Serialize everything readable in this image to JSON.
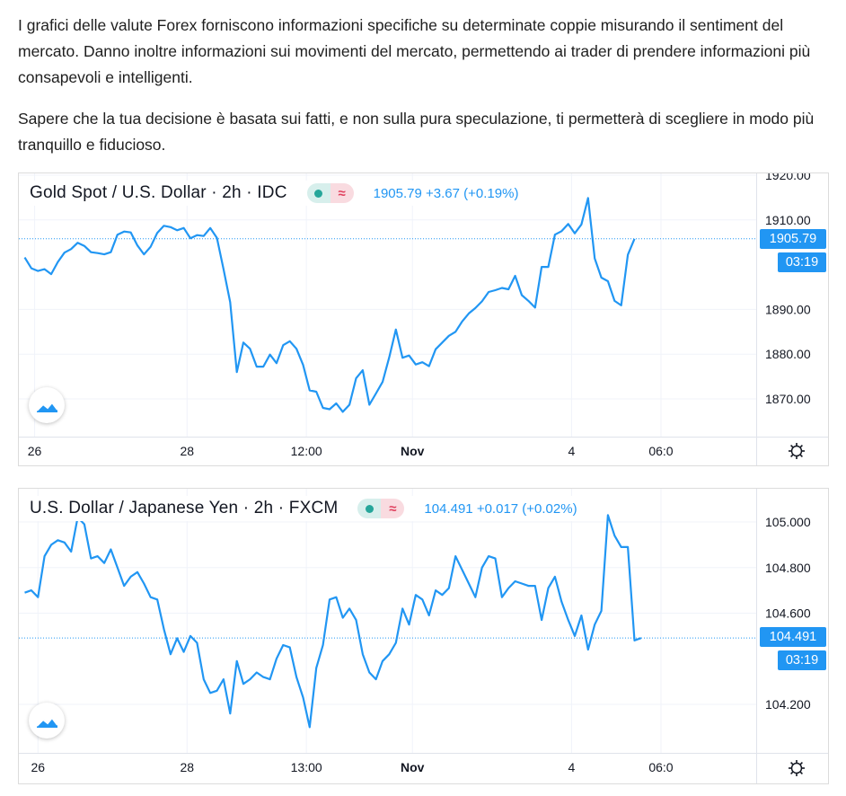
{
  "article": {
    "paragraph1": "I grafici delle valute Forex forniscono informazioni specifiche su determinate coppie misurando il sentiment del mercato. Danno inoltre informazioni sui movimenti del mercato, permettendo ai trader di prendere informazioni più consapevoli e intelligenti.",
    "paragraph2": "Sapere che la tua decisione è basata sui fatti, e non sulla pura speculazione, ti permetterà di scegliere in modo più tranquillo e fiducioso."
  },
  "colors": {
    "line": "#2196f3",
    "accent_green": "#26a69a",
    "accent_red": "#e0415e",
    "grid": "#f0f3fa"
  },
  "icons": {
    "status_dot": "green-dot-icon",
    "wave": "wave-icon",
    "logo": "tradingview-logo-icon",
    "settings": "gear-icon"
  },
  "chart_data": [
    {
      "type": "line",
      "title": "Gold Spot / U.S. Dollar · 2h · IDC",
      "last_price": "1905.79",
      "change": "+3.67 (+0.19%)",
      "countdown": "03:19",
      "ylim": [
        1863,
        1921
      ],
      "y_ticks": [
        1920,
        1910,
        1890,
        1880,
        1870
      ],
      "y_tick_labels": [
        "1920.00",
        "1910.00",
        "1890.00",
        "1880.00",
        "1870.00"
      ],
      "x_tick_labels": [
        {
          "label": "26",
          "i": 1.5
        },
        {
          "label": "28",
          "i": 24.5
        },
        {
          "label": "12:00",
          "i": 42.5
        },
        {
          "label": "Nov",
          "i": 58.5
        },
        {
          "label": "4",
          "i": 82.5
        },
        {
          "label": "06:0",
          "i": 96
        }
      ],
      "grid": true,
      "values": [
        1901.6,
        1899.2,
        1898.6,
        1899.0,
        1897.9,
        1900.6,
        1902.7,
        1903.5,
        1904.9,
        1904.2,
        1902.8,
        1902.6,
        1902.3,
        1902.8,
        1906.7,
        1907.4,
        1907.2,
        1904.3,
        1902.3,
        1904.0,
        1907.1,
        1908.7,
        1908.4,
        1907.7,
        1908.2,
        1905.9,
        1906.6,
        1906.4,
        1908.2,
        1906.0,
        1899.0,
        1891.6,
        1876.0,
        1882.6,
        1881.2,
        1877.2,
        1877.2,
        1879.9,
        1878.0,
        1882.0,
        1882.9,
        1881.2,
        1877.6,
        1871.9,
        1871.6,
        1868.0,
        1867.7,
        1869.0,
        1867.1,
        1868.7,
        1874.6,
        1876.4,
        1868.7,
        1871.2,
        1873.8,
        1879.3,
        1885.5,
        1879.2,
        1879.7,
        1877.7,
        1878.2,
        1877.3,
        1881.1,
        1882.6,
        1884.1,
        1885.0,
        1887.3,
        1889.1,
        1890.3,
        1891.8,
        1893.9,
        1894.3,
        1894.8,
        1894.5,
        1897.5,
        1893.2,
        1891.9,
        1890.4,
        1899.5,
        1899.5,
        1906.7,
        1907.5,
        1909.1,
        1907.0,
        1909.0,
        1914.9,
        1901.4,
        1897.1,
        1896.3,
        1891.9,
        1890.9,
        1902.2,
        1905.79
      ]
    },
    {
      "type": "line",
      "title": "U.S. Dollar / Japanese Yen · 2h · FXCM",
      "last_price": "104.491",
      "change": "+0.017 (+0.02%)",
      "countdown": "03:19",
      "ylim": [
        104.02,
        105.12
      ],
      "y_ticks": [
        105.0,
        104.8,
        104.6,
        104.2
      ],
      "y_tick_labels": [
        "105.000",
        "104.800",
        "104.600",
        "104.200"
      ],
      "x_tick_labels": [
        {
          "label": "26",
          "i": 2
        },
        {
          "label": "28",
          "i": 24.5
        },
        {
          "label": "13:00",
          "i": 42.5
        },
        {
          "label": "Nov",
          "i": 58.5
        },
        {
          "label": "4",
          "i": 82.5
        },
        {
          "label": "06:0",
          "i": 96
        }
      ],
      "grid": true,
      "values": [
        104.69,
        104.7,
        104.67,
        104.85,
        104.9,
        104.92,
        104.91,
        104.87,
        105.02,
        104.99,
        104.84,
        104.85,
        104.82,
        104.88,
        104.8,
        104.72,
        104.76,
        104.78,
        104.73,
        104.67,
        104.66,
        104.53,
        104.42,
        104.49,
        104.43,
        104.5,
        104.47,
        104.31,
        104.25,
        104.26,
        104.31,
        104.16,
        104.39,
        104.29,
        104.31,
        104.34,
        104.32,
        104.31,
        104.4,
        104.46,
        104.45,
        104.32,
        104.23,
        104.1,
        104.36,
        104.46,
        104.66,
        104.67,
        104.58,
        104.62,
        104.57,
        104.42,
        104.34,
        104.31,
        104.39,
        104.42,
        104.47,
        104.62,
        104.55,
        104.68,
        104.66,
        104.59,
        104.7,
        104.68,
        104.71,
        104.85,
        104.79,
        104.73,
        104.67,
        104.8,
        104.85,
        104.84,
        104.67,
        104.71,
        104.74,
        104.73,
        104.72,
        104.72,
        104.57,
        104.71,
        104.76,
        104.65,
        104.57,
        104.5,
        104.59,
        104.44,
        104.55,
        104.61,
        105.03,
        104.94,
        104.89,
        104.89,
        104.48,
        104.491
      ]
    }
  ]
}
